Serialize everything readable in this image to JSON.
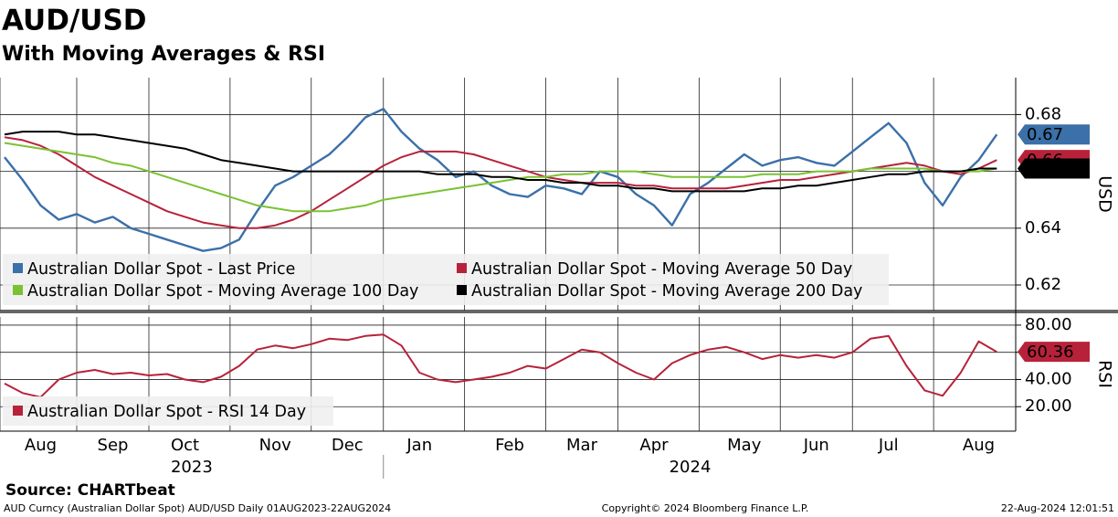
{
  "header": {
    "title": "AUD/USD",
    "subtitle": "With Moving Averages & RSI",
    "source": "Source: CHARTbeat"
  },
  "footer": {
    "left": "AUD Curncy (Australian Dollar Spot) AUD/USD  Daily 01AUG2023-22AUG2024",
    "center": "Copyright© 2024 Bloomberg Finance L.P.",
    "right": "22-Aug-2024 12:01:51"
  },
  "chart_data": [
    {
      "type": "line",
      "y_label": "USD",
      "ylim": [
        0.611,
        0.693
      ],
      "yticks": [
        0.62,
        0.64,
        0.66,
        0.68
      ],
      "grid": true,
      "legend": "bottom-left",
      "series": [
        {
          "name": "Australian Dollar Spot - Last Price",
          "color": "#3b70a8",
          "tag": "0.67",
          "values": [
            0.665,
            0.657,
            0.648,
            0.643,
            0.645,
            0.642,
            0.644,
            0.64,
            0.638,
            0.636,
            0.634,
            0.632,
            0.633,
            0.636,
            0.646,
            0.655,
            0.658,
            0.662,
            0.666,
            0.672,
            0.679,
            0.682,
            0.674,
            0.668,
            0.664,
            0.658,
            0.66,
            0.655,
            0.652,
            0.651,
            0.655,
            0.654,
            0.652,
            0.66,
            0.658,
            0.652,
            0.648,
            0.641,
            0.652,
            0.656,
            0.661,
            0.666,
            0.662,
            0.664,
            0.665,
            0.663,
            0.662,
            0.667,
            0.672,
            0.677,
            0.67,
            0.656,
            0.648,
            0.658,
            0.664,
            0.673
          ]
        },
        {
          "name": "Australian Dollar Spot - Moving Average 50 Day",
          "color": "#b7223a",
          "tag": "0.66",
          "values": [
            0.672,
            0.671,
            0.669,
            0.666,
            0.662,
            0.658,
            0.655,
            0.652,
            0.649,
            0.646,
            0.644,
            0.642,
            0.641,
            0.64,
            0.64,
            0.641,
            0.643,
            0.646,
            0.65,
            0.654,
            0.658,
            0.662,
            0.665,
            0.667,
            0.667,
            0.667,
            0.666,
            0.664,
            0.662,
            0.66,
            0.658,
            0.657,
            0.656,
            0.656,
            0.656,
            0.655,
            0.655,
            0.654,
            0.654,
            0.654,
            0.654,
            0.655,
            0.656,
            0.657,
            0.657,
            0.658,
            0.659,
            0.66,
            0.661,
            0.662,
            0.663,
            0.662,
            0.66,
            0.659,
            0.661,
            0.664
          ]
        },
        {
          "name": "Australian Dollar Spot - Moving Average 100 Day",
          "color": "#7ac231",
          "values": [
            0.67,
            0.669,
            0.668,
            0.667,
            0.666,
            0.665,
            0.663,
            0.662,
            0.66,
            0.658,
            0.656,
            0.654,
            0.652,
            0.65,
            0.648,
            0.647,
            0.646,
            0.646,
            0.646,
            0.647,
            0.648,
            0.65,
            0.651,
            0.652,
            0.653,
            0.654,
            0.655,
            0.656,
            0.657,
            0.658,
            0.658,
            0.659,
            0.659,
            0.66,
            0.66,
            0.66,
            0.659,
            0.658,
            0.658,
            0.658,
            0.658,
            0.658,
            0.659,
            0.659,
            0.659,
            0.66,
            0.66,
            0.66,
            0.661,
            0.661,
            0.661,
            0.661,
            0.66,
            0.66,
            0.66,
            0.661
          ]
        },
        {
          "name": "Australian Dollar Spot - Moving Average 200 Day",
          "color": "#000000",
          "values": [
            0.673,
            0.674,
            0.674,
            0.674,
            0.673,
            0.673,
            0.672,
            0.671,
            0.67,
            0.669,
            0.668,
            0.666,
            0.664,
            0.663,
            0.662,
            0.661,
            0.66,
            0.66,
            0.66,
            0.66,
            0.66,
            0.66,
            0.66,
            0.66,
            0.659,
            0.659,
            0.659,
            0.658,
            0.658,
            0.657,
            0.657,
            0.656,
            0.656,
            0.655,
            0.655,
            0.654,
            0.654,
            0.653,
            0.653,
            0.653,
            0.653,
            0.653,
            0.654,
            0.654,
            0.655,
            0.655,
            0.656,
            0.657,
            0.658,
            0.659,
            0.659,
            0.66,
            0.66,
            0.66,
            0.661,
            0.661
          ]
        }
      ]
    },
    {
      "type": "line",
      "y_label": "RSI",
      "ylim": [
        2,
        86
      ],
      "grid": true,
      "legend": "bottom-left",
      "yticks": [
        {
          "value": 20,
          "label": "20.00"
        },
        {
          "value": 40,
          "label": "40.00"
        },
        {
          "value": 60,
          "label": "60.00"
        },
        {
          "value": 80,
          "label": "80.00"
        }
      ],
      "categories": [
        null,
        null,
        "Aug",
        null,
        null,
        null,
        "Sep",
        null,
        null,
        null,
        "Oct",
        null,
        null,
        null,
        null,
        "Nov",
        null,
        null,
        null,
        "Dec",
        null,
        null,
        null,
        "Jan",
        null,
        null,
        null,
        null,
        "Feb",
        null,
        null,
        null,
        "Mar",
        null,
        null,
        null,
        "Apr",
        null,
        null,
        null,
        null,
        "May",
        null,
        null,
        null,
        "Jun",
        null,
        null,
        null,
        "Jul",
        null,
        null,
        null,
        null,
        "Aug",
        null
      ],
      "years": [
        "2023",
        "2024"
      ],
      "series": [
        {
          "name": "Australian Dollar Spot - RSI 14 Day",
          "color": "#b7223a",
          "tag": "60.36",
          "values": [
            37,
            30,
            27,
            40,
            45,
            47,
            44,
            45,
            43,
            44,
            40,
            38,
            42,
            50,
            62,
            65,
            63,
            66,
            70,
            69,
            72,
            73,
            65,
            45,
            40,
            38,
            40,
            42,
            45,
            50,
            48,
            55,
            62,
            60,
            52,
            45,
            40,
            52,
            58,
            62,
            64,
            60,
            55,
            58,
            56,
            58,
            56,
            60,
            70,
            72,
            50,
            32,
            28,
            45,
            68,
            60.36
          ]
        }
      ]
    }
  ]
}
